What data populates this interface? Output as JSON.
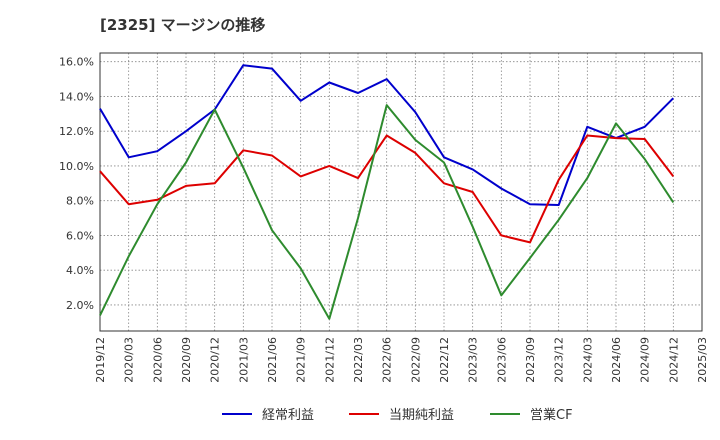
{
  "title": "[2325]  マージンの推移",
  "chart_data": {
    "type": "line",
    "x": [
      "2019/12",
      "2020/03",
      "2020/06",
      "2020/09",
      "2020/12",
      "2021/03",
      "2021/06",
      "2021/09",
      "2021/12",
      "2022/03",
      "2022/06",
      "2022/09",
      "2022/12",
      "2023/03",
      "2023/06",
      "2023/09",
      "2023/12",
      "2024/03",
      "2024/06",
      "2024/09",
      "2024/12",
      "2025/03"
    ],
    "ylim": [
      0.5,
      16.5
    ],
    "yticks": [
      2.0,
      4.0,
      6.0,
      8.0,
      10.0,
      12.0,
      14.0,
      16.0
    ],
    "ytick_labels": [
      "2.0%",
      "4.0%",
      "6.0%",
      "8.0%",
      "10.0%",
      "12.0%",
      "14.0%",
      "16.0%"
    ],
    "grid": true,
    "legend_position": "bottom",
    "series": [
      {
        "name": "経常利益",
        "color": "#0000cc",
        "values": [
          13.3,
          10.5,
          10.85,
          12.0,
          13.25,
          15.8,
          15.6,
          13.75,
          14.8,
          14.2,
          15.0,
          13.1,
          10.5,
          9.8,
          8.7,
          7.8,
          7.75,
          12.25,
          11.6,
          12.25,
          13.9,
          null
        ]
      },
      {
        "name": "当期純利益",
        "color": "#dd0000",
        "values": [
          9.7,
          7.8,
          8.05,
          8.85,
          9.0,
          10.9,
          10.6,
          9.4,
          10.0,
          9.3,
          11.75,
          10.75,
          9.0,
          8.5,
          6.0,
          5.6,
          9.2,
          11.75,
          11.6,
          11.55,
          9.4,
          null
        ]
      },
      {
        "name": "営業CF",
        "color": "#2e8b2e",
        "values": [
          1.4,
          4.8,
          7.8,
          10.2,
          13.25,
          9.9,
          6.3,
          4.1,
          1.2,
          7.0,
          13.5,
          11.5,
          10.2,
          6.5,
          2.55,
          4.7,
          6.9,
          9.3,
          12.45,
          10.4,
          7.9,
          null
        ]
      }
    ]
  }
}
